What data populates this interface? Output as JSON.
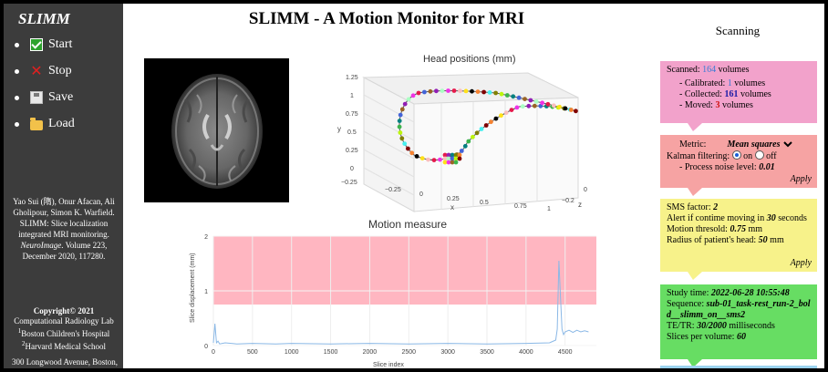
{
  "sidebar": {
    "title": "SLIMM",
    "menu": [
      {
        "label": "Start",
        "icon": "start-checkmark-icon"
      },
      {
        "label": "Stop",
        "icon": "stop-x-icon"
      },
      {
        "label": "Save",
        "icon": "save-floppy-icon"
      },
      {
        "label": "Load",
        "icon": "load-folder-icon"
      }
    ],
    "stop_glyph": "✕",
    "citation_authors": "Yao Sui (隋), Onur Afacan, Ali Gholipour, Simon K. Warfield.",
    "citation_title": "SLIMM: Slice localization integrated MRI monitoring.",
    "citation_journal": "NeuroImage",
    "citation_volume": ". Volume 223, December 2020, 117280.",
    "copyright_line": "Copyright© 2021",
    "lab": "Computational Radiology Lab",
    "aff1_sup": "1",
    "aff1": "Boston Children's Hospital",
    "aff2_sup": "2",
    "aff2": "Harvard Medical School",
    "address": "300 Longwood Avenue, Boston,"
  },
  "header": {
    "title": "SLIMM - A Motion Monitor for MRI",
    "status": "Scanning"
  },
  "head_plot": {
    "title": "Head positions (mm)",
    "y_label": "y",
    "x_label": "x",
    "z_label": "z",
    "y_ticks": [
      "1.25",
      "1",
      "0.75",
      "0.5",
      "0.25",
      "0",
      "−0.25"
    ],
    "x_ticks": [
      "−0.25",
      "0",
      "0.25",
      "0.5",
      "0.75",
      "1"
    ],
    "z_ticks": [
      "0",
      "−0.2"
    ]
  },
  "chart_data": {
    "type": "line",
    "title": "Motion measure",
    "xlabel": "Slice index",
    "ylabel": "Slice displacement (mm)",
    "xlim": [
      0,
      4900
    ],
    "ylim": [
      0,
      2
    ],
    "x_ticks": [
      "0",
      "500",
      "1000",
      "1500",
      "2000",
      "2500",
      "3000",
      "3500",
      "4000",
      "4500"
    ],
    "y_ticks": [
      "0",
      "1",
      "2"
    ],
    "threshold_band": {
      "from": 0.75,
      "to": 2,
      "color": "#ffb6c1"
    },
    "series": [
      {
        "color": "#8ab8e6",
        "x": [
          0,
          20,
          40,
          60,
          80,
          150,
          300,
          500,
          800,
          1000,
          1500,
          2000,
          2500,
          3000,
          3500,
          4000,
          4300,
          4380,
          4400,
          4420,
          4440,
          4460,
          4480,
          4500,
          4550,
          4600,
          4650,
          4700,
          4750,
          4800
        ],
        "y": [
          0.05,
          0.4,
          0.05,
          0.08,
          0.03,
          0.05,
          0.03,
          0.04,
          0.03,
          0.04,
          0.03,
          0.04,
          0.03,
          0.04,
          0.03,
          0.04,
          0.05,
          0.1,
          0.3,
          1.55,
          0.9,
          0.3,
          0.2,
          0.25,
          0.28,
          0.24,
          0.28,
          0.25,
          0.27,
          0.25
        ]
      }
    ]
  },
  "cards": {
    "scan": {
      "scanned_prefix": "Scanned: ",
      "scanned": "164",
      "scanned_suffix": " volumes",
      "calibrated_prefix": "- Calibrated: ",
      "calibrated": "1",
      "calibrated_suffix": " volumes",
      "collected_prefix": "- Collected: ",
      "collected": "161",
      "collected_suffix": " volumes",
      "moved_prefix": "- Moved: ",
      "moved": "3",
      "moved_suffix": " volumes"
    },
    "metric": {
      "metric_label": "Metric:",
      "metric_value": "Mean squares",
      "kalman_label": "Kalman filtering:",
      "on_label": "on",
      "off_label": "off",
      "noise_label": "- Process noise level:",
      "noise_value": "0.01",
      "apply": "Apply"
    },
    "sms": {
      "sms_label": "SMS factor:",
      "sms_value": "2",
      "alert_prefix": "Alert if contime moving in",
      "alert_value": "30",
      "alert_suffix": "seconds",
      "thresh_label": "Motion thresold:",
      "thresh_value": "0.75",
      "thresh_unit": "mm",
      "radius_label": "Radius of patient's head:",
      "radius_value": "50",
      "radius_unit": "mm",
      "apply": "Apply"
    },
    "study": {
      "time_label": "Study time:",
      "time_value": "2022-06-28 10:55:48",
      "seq_label": "Sequence:",
      "seq_value": "sub-01_task-rest_run-2_bold__slimm_on__sms2",
      "tetr_label": "TE/TR:",
      "tetr_value": "30/2000",
      "tetr_unit": "milliseconds",
      "spv_label": "Slices per volume:",
      "spv_value": "60"
    }
  }
}
